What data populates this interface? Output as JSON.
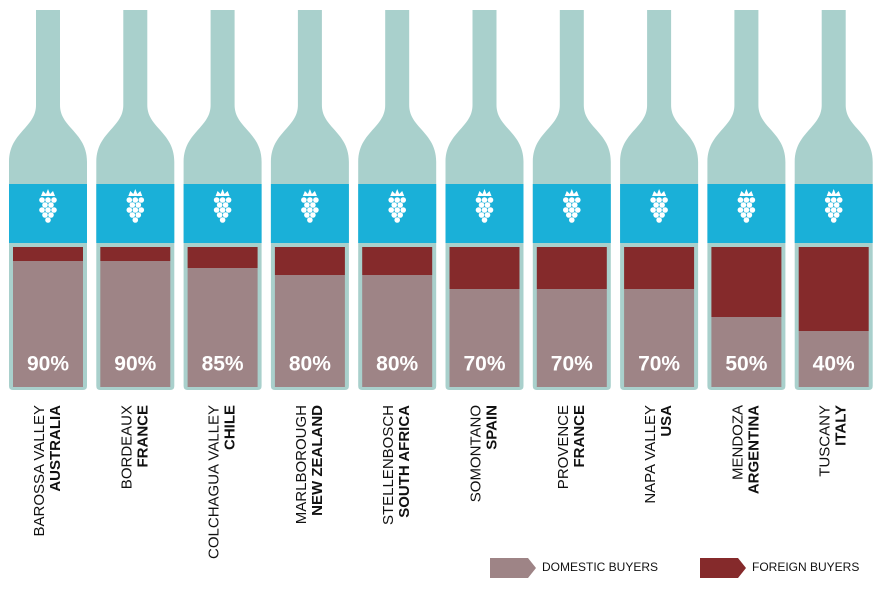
{
  "chart_data": {
    "type": "bottle-bar",
    "categories": [
      "BAROSSA VALLEY",
      "BORDEAUX",
      "COLCHAGUA VALLEY",
      "MARLBOROUGH",
      "STELLENBOSCH",
      "SOMONTANO",
      "PROVENCE",
      "NAPA VALLEY",
      "MENDOZA",
      "TUSCANY"
    ],
    "countries": [
      "AUSTRALIA",
      "FRANCE",
      "CHILE",
      "NEW ZEALAND",
      "SOUTH AFRICA",
      "SPAIN",
      "FRANCE",
      "USA",
      "ARGENTINA",
      "ITALY"
    ],
    "ylim": [
      0,
      100
    ],
    "series": [
      {
        "name": "DOMESTIC BUYERS",
        "color": "#9e8486",
        "values": [
          90,
          90,
          85,
          80,
          80,
          70,
          70,
          70,
          50,
          40
        ],
        "value_labels": [
          "90%",
          "90%",
          "85%",
          "80%",
          "80%",
          "70%",
          "70%",
          "70%",
          "50%",
          "40%"
        ]
      },
      {
        "name": "FOREIGN BUYERS",
        "color": "#852a2b",
        "values": [
          10,
          10,
          15,
          20,
          20,
          30,
          30,
          30,
          50,
          60
        ]
      }
    ]
  }
}
